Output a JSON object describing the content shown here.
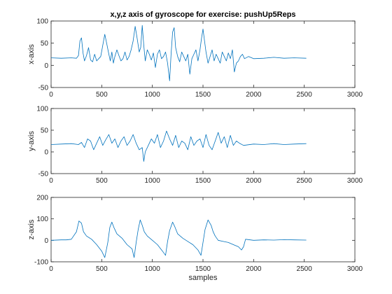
{
  "chart_data": [
    {
      "type": "line",
      "title": "x,y,z axis of gyroscope for exercise: pushUp5Reps",
      "xlabel": "",
      "ylabel": "x-axis",
      "xlim": [
        0,
        3000
      ],
      "ylim": [
        -50,
        100
      ],
      "xticks": [
        "0",
        "500",
        "1000",
        "1500",
        "2000",
        "2500",
        "3000"
      ],
      "yticks": [
        "-50",
        "0",
        "50",
        "100"
      ],
      "color": "#0072BD",
      "grid": false,
      "x": [
        0,
        100,
        200,
        250,
        270,
        285,
        300,
        315,
        330,
        350,
        370,
        390,
        410,
        430,
        450,
        470,
        490,
        510,
        530,
        550,
        570,
        585,
        600,
        615,
        630,
        650,
        670,
        690,
        710,
        730,
        750,
        770,
        790,
        810,
        830,
        850,
        870,
        885,
        900,
        915,
        930,
        950,
        970,
        990,
        1010,
        1030,
        1050,
        1070,
        1090,
        1110,
        1130,
        1150,
        1170,
        1185,
        1200,
        1215,
        1230,
        1250,
        1270,
        1290,
        1310,
        1330,
        1350,
        1370,
        1390,
        1410,
        1430,
        1450,
        1470,
        1485,
        1500,
        1515,
        1530,
        1550,
        1570,
        1590,
        1610,
        1630,
        1650,
        1670,
        1690,
        1710,
        1730,
        1750,
        1770,
        1790,
        1810,
        1830,
        1850,
        1870,
        1890,
        1910,
        1950,
        2000,
        2100,
        2200,
        2300,
        2400,
        2520
      ],
      "y": [
        17,
        16,
        17,
        16,
        22,
        55,
        62,
        28,
        10,
        22,
        40,
        12,
        8,
        25,
        10,
        15,
        20,
        45,
        70,
        48,
        25,
        10,
        30,
        5,
        20,
        35,
        22,
        10,
        15,
        30,
        12,
        20,
        35,
        55,
        88,
        60,
        30,
        40,
        90,
        45,
        10,
        35,
        25,
        12,
        28,
        -5,
        25,
        35,
        15,
        20,
        30,
        5,
        -35,
        25,
        75,
        85,
        40,
        20,
        8,
        30,
        20,
        10,
        25,
        -20,
        15,
        25,
        35,
        10,
        35,
        60,
        82,
        55,
        30,
        5,
        20,
        35,
        10,
        25,
        15,
        5,
        30,
        20,
        10,
        28,
        15,
        35,
        -15,
        5,
        10,
        20,
        25,
        15,
        20,
        15,
        16,
        18,
        16,
        17,
        16
      ]
    },
    {
      "type": "line",
      "title": "",
      "xlabel": "",
      "ylabel": "y-axis",
      "xlim": [
        0,
        3000
      ],
      "ylim": [
        -50,
        100
      ],
      "xticks": [
        "0",
        "500",
        "1000",
        "1500",
        "2000",
        "2500",
        "3000"
      ],
      "yticks": [
        "-50",
        "0",
        "50",
        "100"
      ],
      "color": "#0072BD",
      "grid": false,
      "x": [
        0,
        100,
        200,
        270,
        300,
        330,
        360,
        390,
        420,
        450,
        480,
        510,
        540,
        570,
        600,
        630,
        660,
        690,
        720,
        750,
        780,
        810,
        840,
        870,
        900,
        915,
        930,
        960,
        990,
        1020,
        1050,
        1080,
        1110,
        1140,
        1170,
        1200,
        1230,
        1260,
        1290,
        1320,
        1350,
        1380,
        1410,
        1440,
        1470,
        1500,
        1530,
        1560,
        1590,
        1620,
        1650,
        1680,
        1710,
        1740,
        1770,
        1800,
        1830,
        1860,
        1900,
        2000,
        2100,
        2200,
        2300,
        2400,
        2520
      ],
      "y": [
        17,
        18,
        19,
        17,
        22,
        10,
        30,
        25,
        5,
        20,
        35,
        15,
        28,
        40,
        20,
        30,
        10,
        25,
        35,
        15,
        25,
        40,
        20,
        5,
        10,
        -22,
        0,
        15,
        30,
        20,
        40,
        10,
        25,
        48,
        30,
        15,
        38,
        10,
        25,
        20,
        5,
        35,
        15,
        25,
        30,
        10,
        40,
        15,
        5,
        25,
        45,
        20,
        35,
        10,
        38,
        15,
        25,
        20,
        15,
        18,
        17,
        19,
        17,
        18,
        19
      ]
    },
    {
      "type": "line",
      "title": "",
      "xlabel": "samples",
      "ylabel": "z-axis",
      "xlim": [
        0,
        3000
      ],
      "ylim": [
        -100,
        200
      ],
      "xticks": [
        "0",
        "500",
        "1000",
        "1500",
        "2000",
        "2500",
        "3000"
      ],
      "yticks": [
        "-100",
        "0",
        "100",
        "200"
      ],
      "color": "#0072BD",
      "grid": false,
      "x": [
        0,
        100,
        150,
        200,
        250,
        275,
        300,
        320,
        350,
        400,
        450,
        500,
        530,
        560,
        580,
        600,
        620,
        650,
        700,
        750,
        800,
        820,
        840,
        860,
        880,
        900,
        920,
        950,
        1000,
        1050,
        1100,
        1130,
        1150,
        1170,
        1200,
        1220,
        1250,
        1300,
        1350,
        1400,
        1450,
        1480,
        1500,
        1520,
        1550,
        1580,
        1600,
        1620,
        1650,
        1700,
        1750,
        1800,
        1850,
        1880,
        1900,
        1920,
        2000,
        2100,
        2200,
        2300,
        2400,
        2520
      ],
      "y": [
        0,
        2,
        2,
        5,
        40,
        90,
        80,
        40,
        20,
        5,
        -20,
        -50,
        -80,
        -10,
        60,
        85,
        60,
        30,
        10,
        -20,
        -40,
        -80,
        -10,
        50,
        95,
        70,
        40,
        20,
        0,
        -20,
        -50,
        -70,
        -5,
        45,
        85,
        65,
        30,
        10,
        -5,
        -20,
        -45,
        -70,
        -10,
        50,
        95,
        70,
        40,
        20,
        0,
        -5,
        -10,
        -20,
        -30,
        -45,
        -30,
        5,
        0,
        2,
        1,
        3,
        2,
        1
      ]
    }
  ]
}
